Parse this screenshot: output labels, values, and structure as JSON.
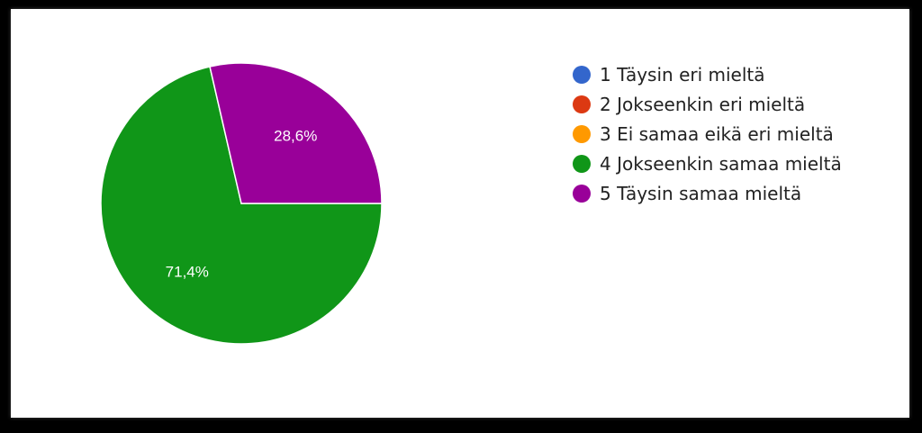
{
  "chart_data": {
    "type": "pie",
    "title": "",
    "categories": [
      "1 Täysin eri mieltä",
      "2 Jokseenkin eri mieltä",
      "3 Ei samaa eikä eri mieltä",
      "4 Jokseenkin samaa mieltä",
      "5 Täysin samaa mieltä"
    ],
    "values": [
      0,
      0,
      0,
      71.4,
      28.6
    ],
    "data_labels": [
      "",
      "",
      "",
      "71,4%",
      "28,6%"
    ],
    "colors": [
      "#3366cc",
      "#dc3912",
      "#ff9900",
      "#109618",
      "#990099"
    ],
    "legend_position": "right"
  }
}
